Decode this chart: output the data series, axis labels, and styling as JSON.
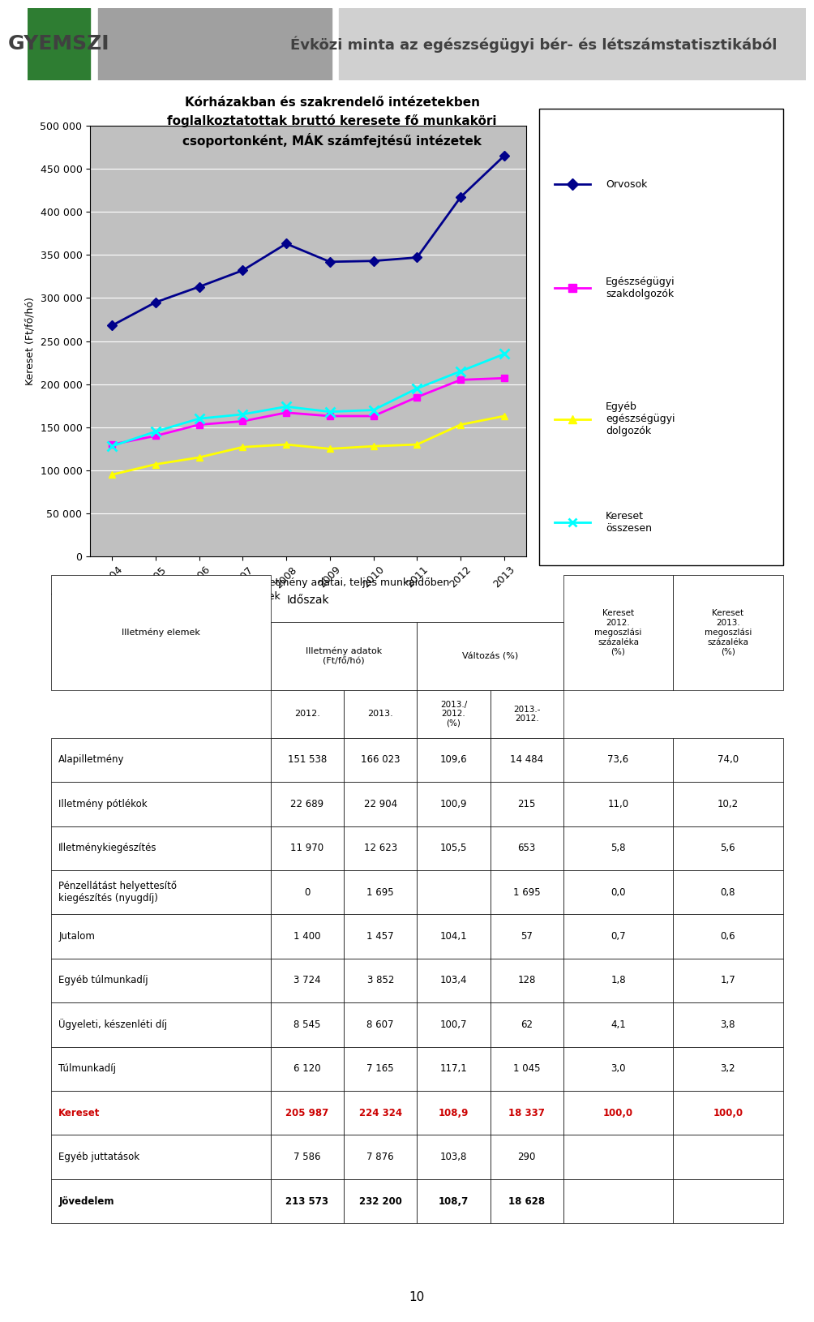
{
  "header_text": "Évközi minta az egészségügyi bér- és létszámstatisztikából",
  "chart_title_line1": "Kórházakban és szakrendelő intézetekben",
  "chart_title_line2": "foglalkoztatottak bruttó keresete fő munkaköri",
  "chart_title_line3": "csoportonként, MÁK számfejtésű intézetek",
  "xlabel": "Időszak",
  "ylabel": "Kereset (Ft/fő/hó)",
  "years": [
    2004,
    2005,
    2006,
    2007,
    2008,
    2009,
    2010,
    2011,
    2012,
    2013
  ],
  "orvosok": [
    268000,
    295000,
    313000,
    332000,
    363000,
    342000,
    343000,
    347000,
    417000,
    465000
  ],
  "egeszsegugyi": [
    130000,
    140000,
    153000,
    157000,
    167000,
    163000,
    163000,
    185000,
    205000,
    207000
  ],
  "egyeb": [
    95000,
    107000,
    115000,
    127000,
    130000,
    125000,
    128000,
    130000,
    153000,
    163000
  ],
  "kereset": [
    128000,
    145000,
    160000,
    165000,
    174000,
    168000,
    170000,
    195000,
    215000,
    235000
  ],
  "legend_labels": [
    "Orvosok",
    "Egészségügyi\nszakdolgozók",
    "Egyéb\negészségügyi\ndolgozók",
    "Kereset\nösszesen"
  ],
  "line_colors": [
    "#00008B",
    "#FF00FF",
    "#FFFF00",
    "#00FFFF"
  ],
  "line_markers": [
    "D",
    "s",
    "^",
    "x"
  ],
  "ylim": [
    0,
    500000
  ],
  "yticks": [
    0,
    50000,
    100000,
    150000,
    200000,
    250000,
    300000,
    350000,
    400000,
    450000,
    500000
  ],
  "section_title": "5.1.4.2. Kórházak, szakrendelő intézetek illetmény adatai, teljes munkaidőben\nfoglalkoztatottak, MÁK számfejtésű intézetek",
  "table_col_headers": [
    "Illetmény adatok\n(Ft/fő/hó)",
    "",
    "Változás (%)",
    "",
    "Kereset\n2012.\nmegoszlási\nszázaléka\n(%)",
    "Kereset\n2013.\nmegoszlási\nszázaléka\n(%)"
  ],
  "table_sub_headers": [
    "2012.",
    "2013.",
    "2013./\n2012.\n(%)",
    "2013.-\n2012."
  ],
  "table_rows": [
    [
      "Alapilletmény",
      "151 538",
      "166 023",
      "109,6",
      "14 484",
      "73,6",
      "74,0"
    ],
    [
      "Illetmény pótlékok",
      "22 689",
      "22 904",
      "100,9",
      "215",
      "11,0",
      "10,2"
    ],
    [
      "Illetménykiegészítés",
      "11 970",
      "12 623",
      "105,5",
      "653",
      "5,8",
      "5,6"
    ],
    [
      "Pénzellátást helyettesítő\nkiegészítés (nyugdíj)",
      "0",
      "1 695",
      "",
      "1 695",
      "0,0",
      "0,8"
    ],
    [
      "Jutalom",
      "1 400",
      "1 457",
      "104,1",
      "57",
      "0,7",
      "0,6"
    ],
    [
      "Egyéb túlmunkadíj",
      "3 724",
      "3 852",
      "103,4",
      "128",
      "1,8",
      "1,7"
    ],
    [
      "Ügyeleti, készenléti díj",
      "8 545",
      "8 607",
      "100,7",
      "62",
      "4,1",
      "3,8"
    ],
    [
      "Túlmunkadíj",
      "6 120",
      "7 165",
      "117,1",
      "1 045",
      "3,0",
      "3,2"
    ],
    [
      "Kereset",
      "205 987",
      "224 324",
      "108,9",
      "18 337",
      "100,0",
      "100,0"
    ],
    [
      "Egyéb juttatások",
      "7 586",
      "7 876",
      "103,8",
      "290",
      "",
      ""
    ],
    [
      "Jövedelem",
      "213 573",
      "232 200",
      "108,7",
      "18 628",
      "",
      ""
    ]
  ],
  "bold_rows": [
    8,
    10
  ],
  "red_rows": [
    8
  ],
  "page_number": "10",
  "bg_color_header": "#4a4a4a",
  "bg_color_bar": "#006400",
  "chart_bg": "#C0C0C0"
}
